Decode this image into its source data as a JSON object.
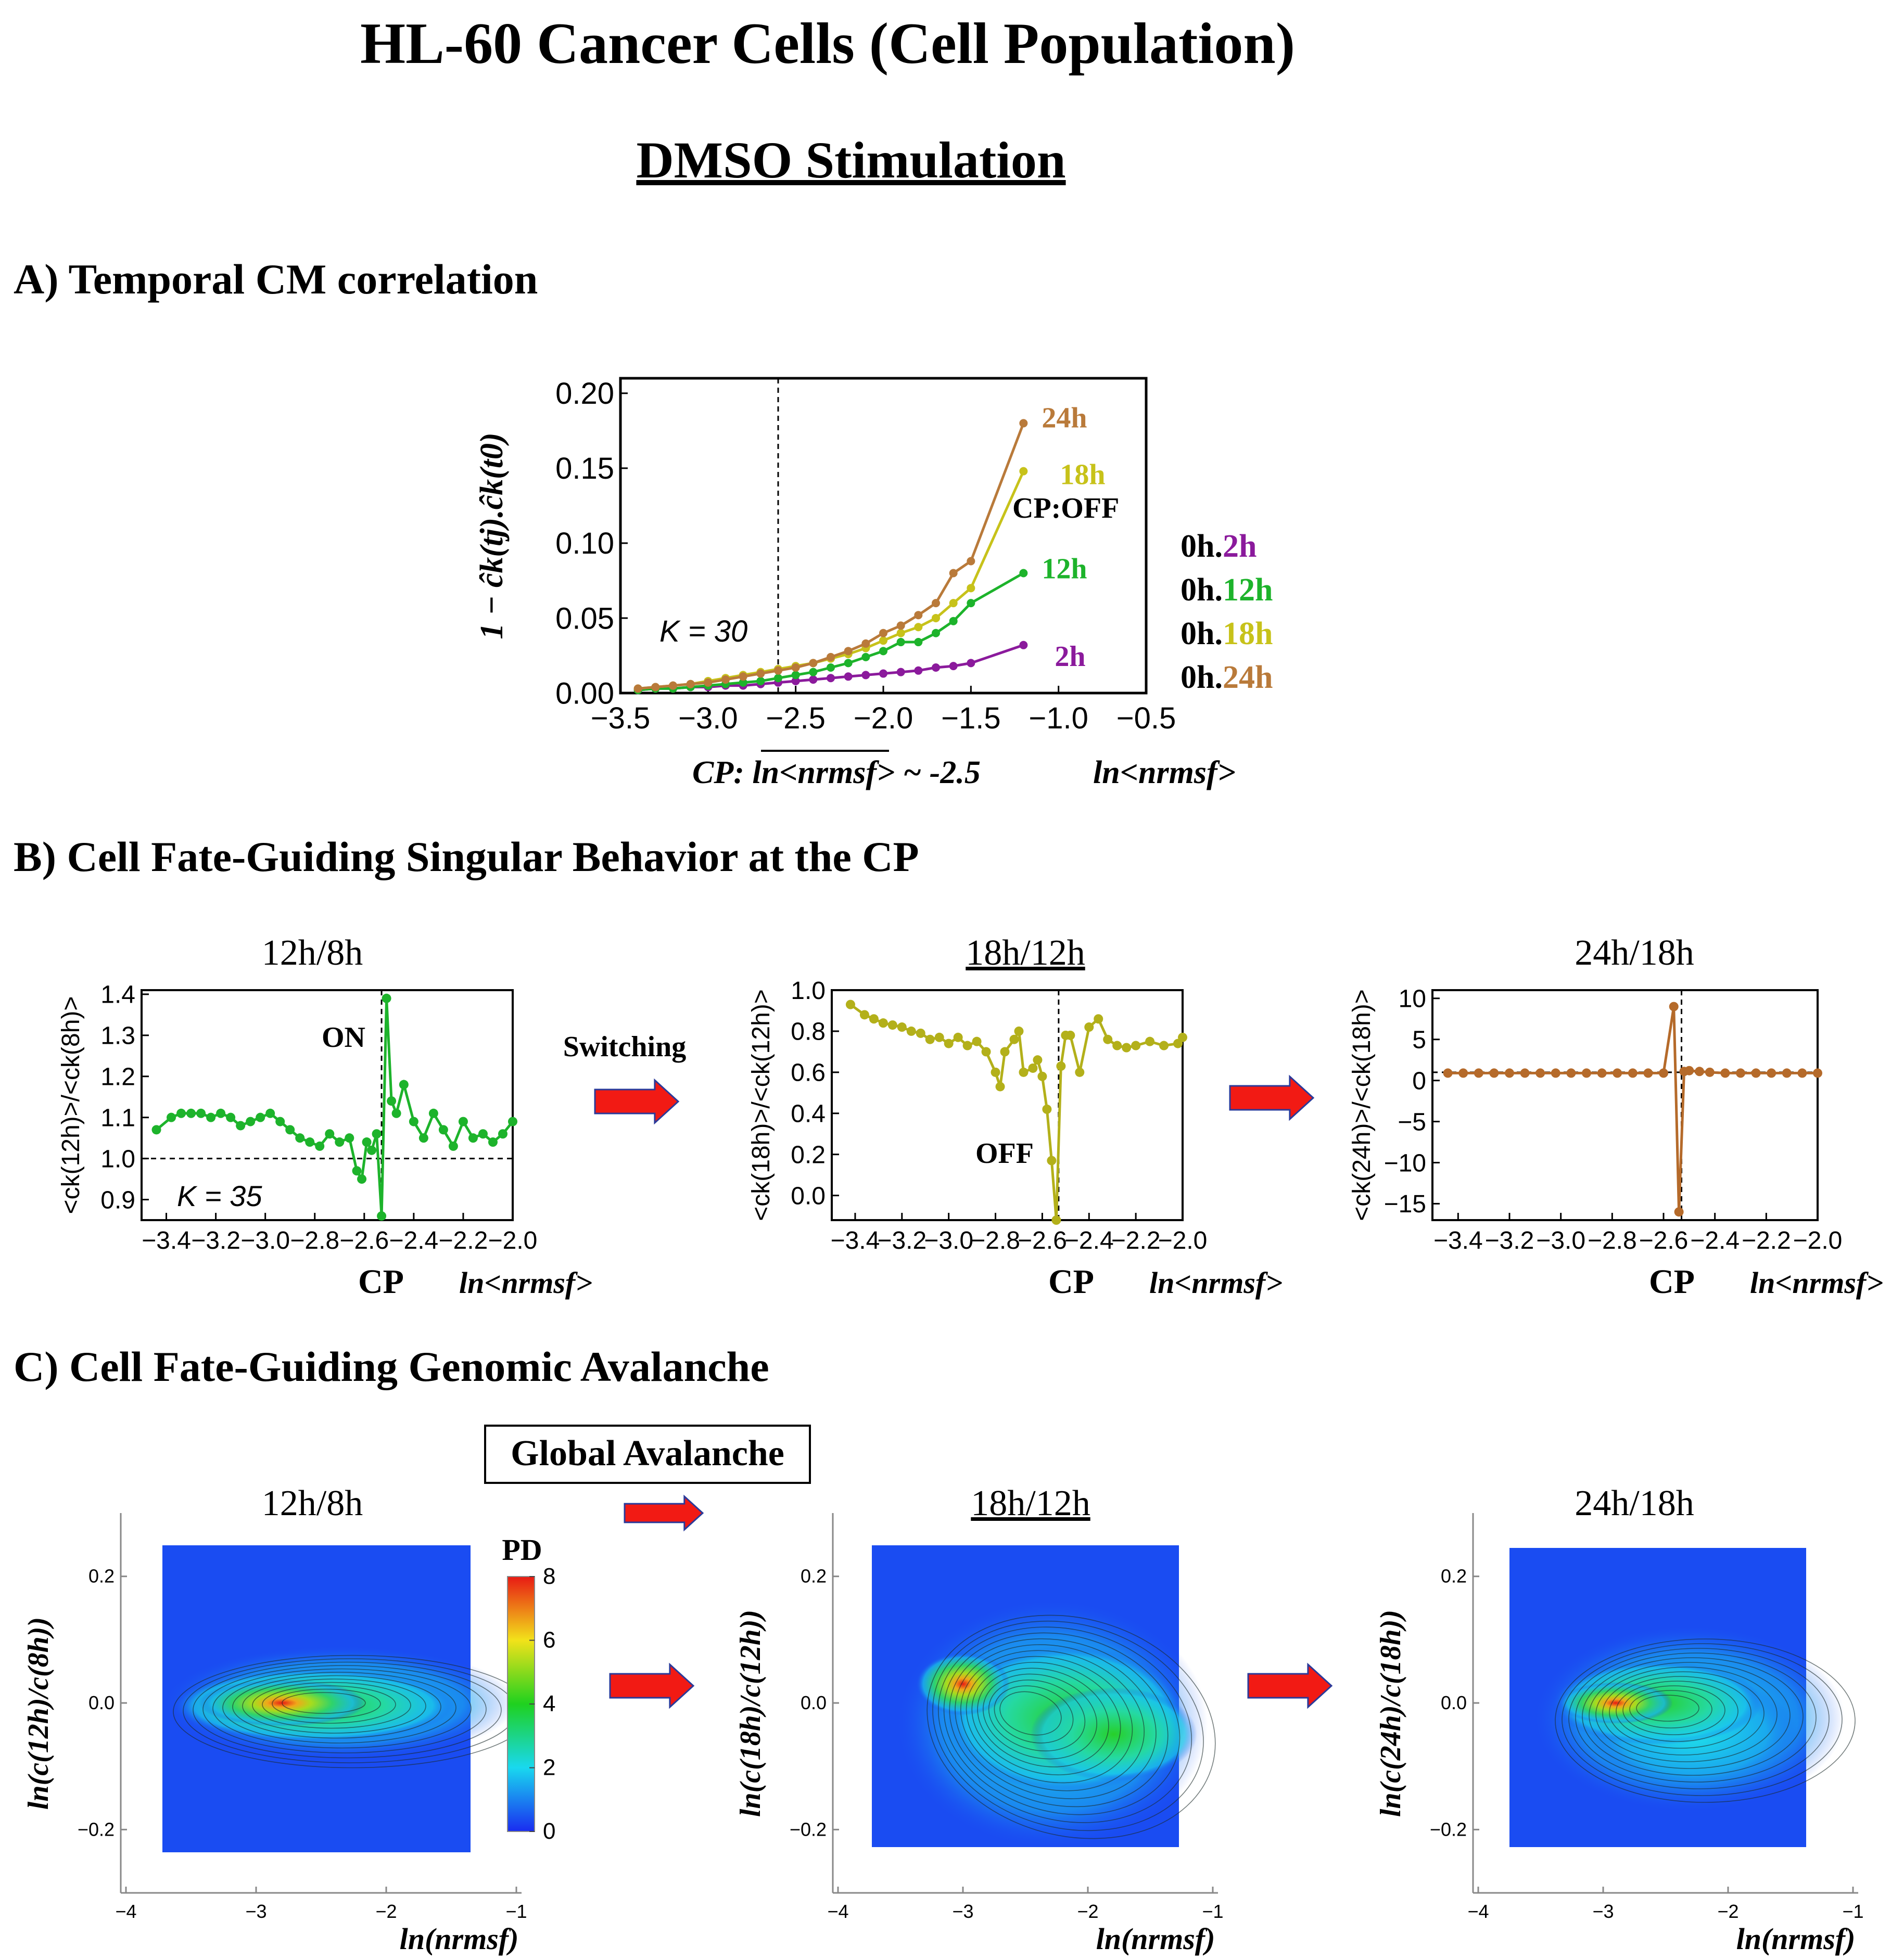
{
  "header": {
    "title": "HL-60 Cancer Cells (Cell Population)",
    "subtitle": "DMSO Stimulation"
  },
  "sections": {
    "a": "A)   Temporal CM correlation",
    "b": "B)    Cell Fate-Guiding Singular Behavior at the CP",
    "c": "C)    Cell Fate-Guiding Genomic Avalanche"
  },
  "panel_a": {
    "ylabel": "1 − ĉk(tj).ĉk(t0)",
    "k_label": "K = 30",
    "cp_label": "CP: ln<nrmsf> ~ -2.5",
    "cp_off": "CP:OFF",
    "xlabel": "ln<nrmsf>",
    "legend": [
      {
        "prefix": "0h.",
        "name": "2h",
        "color": "#8b1a9c"
      },
      {
        "prefix": "0h.",
        "name": "12h",
        "color": "#1db32b"
      },
      {
        "prefix": "0h.",
        "name": "18h",
        "color": "#c7c21a"
      },
      {
        "prefix": "0h.",
        "name": "24h",
        "color": "#b97a3a"
      }
    ]
  },
  "panel_b": {
    "switching": "Switching",
    "cp": "CP",
    "xlabel": "ln<nrmsf>",
    "on": "ON",
    "off": "OFF",
    "k_label": "K = 35",
    "titles": [
      "12h/8h",
      "18h/12h",
      "24h/18h"
    ],
    "ylabels": [
      "<ck(12h)>/<ck(8h)>",
      "<ck(18h)>/<ck(12h)>",
      "<ck(24h)>/<ck(18h)>"
    ]
  },
  "panel_c": {
    "global": "Global Avalanche",
    "titles": [
      "12h/8h",
      "18h/12h",
      "24h/18h"
    ],
    "ylabels": [
      "ln(c(12h)/c(8h))",
      "ln(c(18h)/c(12h))",
      "ln(c(24h)/c(18h))"
    ],
    "xlabel": "ln(nrmsf)",
    "pd": "PD",
    "colorbar_ticks": [
      "0",
      "2",
      "4",
      "6",
      "8"
    ]
  },
  "chart_data": [
    {
      "id": "A",
      "type": "line",
      "title": "Temporal CM correlation",
      "xlabel": "ln<nrmsf>",
      "ylabel": "1 − ĉk(tj).ĉk(t0)",
      "xlim": [
        -3.5,
        -0.5
      ],
      "ylim": [
        0,
        0.21
      ],
      "xticks": [
        "-3.5",
        "-3.0",
        "-2.5",
        "-2.0",
        "-1.5",
        "-1.0",
        "-0.5"
      ],
      "yticks": [
        "0.00",
        "0.05",
        "0.10",
        "0.15",
        "0.20"
      ],
      "cp_line": -2.6,
      "series": [
        {
          "name": "2h",
          "color": "#8b1a9c",
          "x": [
            -3.4,
            -3.3,
            -3.2,
            -3.1,
            -3.0,
            -2.9,
            -2.8,
            -2.7,
            -2.6,
            -2.5,
            -2.4,
            -2.3,
            -2.2,
            -2.1,
            -2.0,
            -1.9,
            -1.8,
            -1.7,
            -1.6,
            -1.5,
            -1.2
          ],
          "y": [
            0.002,
            0.003,
            0.003,
            0.004,
            0.004,
            0.005,
            0.005,
            0.006,
            0.007,
            0.008,
            0.009,
            0.01,
            0.011,
            0.012,
            0.013,
            0.014,
            0.015,
            0.017,
            0.018,
            0.02,
            0.032
          ]
        },
        {
          "name": "12h",
          "color": "#1db32b",
          "x": [
            -3.4,
            -3.3,
            -3.2,
            -3.1,
            -3.0,
            -2.9,
            -2.8,
            -2.7,
            -2.6,
            -2.5,
            -2.4,
            -2.3,
            -2.2,
            -2.1,
            -2.0,
            -1.9,
            -1.8,
            -1.7,
            -1.6,
            -1.5,
            -1.2
          ],
          "y": [
            0.002,
            0.003,
            0.003,
            0.004,
            0.005,
            0.006,
            0.007,
            0.008,
            0.01,
            0.012,
            0.014,
            0.017,
            0.02,
            0.024,
            0.028,
            0.034,
            0.034,
            0.04,
            0.048,
            0.06,
            0.08
          ]
        },
        {
          "name": "18h",
          "color": "#c7c21a",
          "x": [
            -3.4,
            -3.3,
            -3.2,
            -3.1,
            -3.0,
            -2.9,
            -2.8,
            -2.7,
            -2.6,
            -2.5,
            -2.4,
            -2.3,
            -2.2,
            -2.1,
            -2.0,
            -1.9,
            -1.8,
            -1.7,
            -1.6,
            -1.5,
            -1.2
          ],
          "y": [
            0.003,
            0.004,
            0.005,
            0.006,
            0.008,
            0.01,
            0.012,
            0.014,
            0.016,
            0.018,
            0.02,
            0.023,
            0.026,
            0.03,
            0.035,
            0.04,
            0.044,
            0.05,
            0.06,
            0.07,
            0.148
          ]
        },
        {
          "name": "24h",
          "color": "#b97a3a",
          "x": [
            -3.4,
            -3.3,
            -3.2,
            -3.1,
            -3.0,
            -2.9,
            -2.8,
            -2.7,
            -2.6,
            -2.5,
            -2.4,
            -2.3,
            -2.2,
            -2.1,
            -2.0,
            -1.9,
            -1.8,
            -1.7,
            -1.6,
            -1.5,
            -1.2
          ],
          "y": [
            0.003,
            0.004,
            0.005,
            0.006,
            0.007,
            0.009,
            0.011,
            0.013,
            0.015,
            0.017,
            0.02,
            0.024,
            0.028,
            0.033,
            0.04,
            0.045,
            0.052,
            0.06,
            0.08,
            0.088,
            0.18
          ]
        }
      ]
    },
    {
      "id": "B1",
      "type": "line",
      "title": "12h/8h",
      "xlabel": "ln<nrmsf>",
      "ylabel": "<ck(12h)>/<ck(8h)>",
      "xlim": [
        -3.5,
        -2.0
      ],
      "ylim": [
        0.85,
        1.41
      ],
      "xticks": [
        "-3.4",
        "-3.2",
        "-3.0",
        "-2.8",
        "-2.6",
        "-2.4",
        "-2.2",
        "-2.0"
      ],
      "yticks": [
        "0.9",
        "1.0",
        "1.1",
        "1.2",
        "1.3",
        "1.4"
      ],
      "cp_line": -2.53,
      "hline": 1.0,
      "color": "#1db32b",
      "x": [
        -3.44,
        -3.38,
        -3.34,
        -3.3,
        -3.26,
        -3.22,
        -3.18,
        -3.14,
        -3.1,
        -3.06,
        -3.02,
        -2.98,
        -2.94,
        -2.9,
        -2.86,
        -2.82,
        -2.78,
        -2.74,
        -2.7,
        -2.66,
        -2.63,
        -2.61,
        -2.59,
        -2.57,
        -2.55,
        -2.53,
        -2.51,
        -2.49,
        -2.47,
        -2.44,
        -2.4,
        -2.36,
        -2.32,
        -2.28,
        -2.24,
        -2.2,
        -2.16,
        -2.12,
        -2.08,
        -2.04,
        -2.0
      ],
      "y": [
        1.07,
        1.1,
        1.11,
        1.11,
        1.11,
        1.1,
        1.11,
        1.1,
        1.08,
        1.09,
        1.1,
        1.11,
        1.09,
        1.07,
        1.05,
        1.04,
        1.03,
        1.06,
        1.04,
        1.05,
        0.97,
        0.95,
        1.04,
        1.02,
        1.06,
        0.86,
        1.39,
        1.14,
        1.11,
        1.18,
        1.09,
        1.05,
        1.11,
        1.07,
        1.03,
        1.09,
        1.05,
        1.06,
        1.04,
        1.06,
        1.09
      ]
    },
    {
      "id": "B2",
      "type": "line",
      "title": "18h/12h",
      "xlabel": "ln<nrmsf>",
      "ylabel": "<ck(18h)>/<ck(12h)>",
      "xlim": [
        -3.5,
        -2.0
      ],
      "ylim": [
        -0.12,
        1.0
      ],
      "xticks": [
        "-3.4",
        "-3.2",
        "-3.0",
        "-2.8",
        "-2.6",
        "-2.4",
        "-2.2",
        "-2.0"
      ],
      "yticks": [
        "0.0",
        "0.2",
        "0.4",
        "0.6",
        "0.8",
        "1.0"
      ],
      "cp_line": -2.53,
      "color": "#b3b01a",
      "x": [
        -3.42,
        -3.36,
        -3.32,
        -3.28,
        -3.24,
        -3.2,
        -3.16,
        -3.12,
        -3.08,
        -3.04,
        -3.0,
        -2.96,
        -2.92,
        -2.88,
        -2.84,
        -2.8,
        -2.78,
        -2.76,
        -2.72,
        -2.7,
        -2.68,
        -2.64,
        -2.62,
        -2.6,
        -2.58,
        -2.56,
        -2.54,
        -2.52,
        -2.5,
        -2.48,
        -2.44,
        -2.4,
        -2.36,
        -2.32,
        -2.28,
        -2.24,
        -2.2,
        -2.14,
        -2.08,
        -2.02,
        -2.0
      ],
      "y": [
        0.93,
        0.88,
        0.86,
        0.84,
        0.83,
        0.82,
        0.8,
        0.79,
        0.76,
        0.77,
        0.74,
        0.77,
        0.73,
        0.75,
        0.7,
        0.6,
        0.53,
        0.7,
        0.76,
        0.8,
        0.6,
        0.62,
        0.66,
        0.58,
        0.42,
        0.17,
        -0.12,
        0.63,
        0.78,
        0.78,
        0.6,
        0.82,
        0.86,
        0.76,
        0.73,
        0.72,
        0.73,
        0.75,
        0.73,
        0.74,
        0.77
      ]
    },
    {
      "id": "B3",
      "type": "line",
      "title": "24h/18h",
      "xlabel": "ln<nrmsf>",
      "ylabel": "<ck(24h)>/<ck(18h)>",
      "xlim": [
        -3.5,
        -2.0
      ],
      "ylim": [
        -17,
        11
      ],
      "xticks": [
        "-3.4",
        "-3.2",
        "-3.0",
        "-2.8",
        "-2.6",
        "-2.4",
        "-2.2",
        "-2.0"
      ],
      "yticks": [
        "-15",
        "-10",
        "-5",
        "0",
        "5",
        "10"
      ],
      "cp_line": -2.53,
      "hline": 1.0,
      "color": "#b56a2a",
      "x": [
        -3.44,
        -3.38,
        -3.32,
        -3.26,
        -3.2,
        -3.14,
        -3.08,
        -3.02,
        -2.96,
        -2.9,
        -2.84,
        -2.78,
        -2.72,
        -2.66,
        -2.6,
        -2.56,
        -2.54,
        -2.52,
        -2.5,
        -2.46,
        -2.42,
        -2.36,
        -2.3,
        -2.24,
        -2.18,
        -2.12,
        -2.06,
        -2.0
      ],
      "y": [
        0.9,
        0.9,
        0.9,
        0.9,
        0.9,
        0.9,
        0.9,
        0.9,
        0.9,
        0.9,
        0.9,
        0.9,
        0.9,
        0.9,
        0.9,
        9.0,
        -16.0,
        1.1,
        1.2,
        1.1,
        1.0,
        0.9,
        0.9,
        0.9,
        0.9,
        0.9,
        0.9,
        0.9
      ]
    },
    {
      "id": "C",
      "type": "heatmap",
      "title": "Cell Fate-Guiding Genomic Avalanche",
      "xlabel": "ln(nrmsf)",
      "xlim": [
        -4,
        -1
      ],
      "ylim": [
        -0.3,
        0.3
      ],
      "xticks": [
        "-4",
        "-3",
        "-2",
        "-1"
      ],
      "yticks": [
        "-0.2",
        "0.0",
        "0.2"
      ],
      "colorbar": {
        "label": "PD",
        "range": [
          0,
          8
        ]
      },
      "panels": [
        {
          "title": "12h/8h",
          "ylabel": "ln(c(12h)/c(8h))",
          "peak": [
            -2.8,
            0.0
          ]
        },
        {
          "title": "18h/12h",
          "ylabel": "ln(c(18h)/c(12h))",
          "peak": [
            -3.0,
            0.03
          ]
        },
        {
          "title": "24h/18h",
          "ylabel": "ln(c(24h)/c(18h))",
          "peak": [
            -2.9,
            0.0
          ]
        }
      ]
    }
  ]
}
